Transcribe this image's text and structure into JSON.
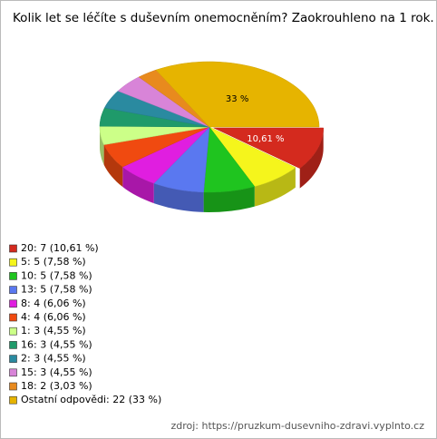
{
  "chart_data": {
    "type": "pie",
    "title": "Kolik let se léčíte s duševním onemocněním? Zaokrouhleno na 1 rok.",
    "labels": [
      "20: 7 (10,61 %)",
      "5: 5 (7,58 %)",
      "10: 5 (7,58 %)",
      "13: 5 (7,58 %)",
      "8: 4 (6,06 %)",
      "4: 4 (6,06 %)",
      "1: 3 (4,55 %)",
      "16: 3 (4,55 %)",
      "2: 3 (4,55 %)",
      "15: 3 (4,55 %)",
      "18: 2 (3,03 %)",
      "Ostatní odpovědi: 22 (33 %)"
    ],
    "values": [
      10.61,
      7.58,
      7.58,
      7.58,
      6.06,
      6.06,
      4.55,
      4.55,
      4.55,
      4.55,
      3.03,
      33
    ],
    "value_labels": [
      "10,61 %",
      null,
      null,
      null,
      null,
      null,
      null,
      null,
      null,
      null,
      null,
      "33 %"
    ],
    "colors": [
      "#d42a1e",
      "#f5f51c",
      "#1fc41f",
      "#5a78f0",
      "#e01ee0",
      "#f04a10",
      "#ccff88",
      "#1f9a6a",
      "#2a8aa0",
      "#d884d8",
      "#e88a1e",
      "#e6b400"
    ],
    "source": "zdroj: https://pruzkum-dusevniho-zdravi.vyplnto.cz"
  }
}
